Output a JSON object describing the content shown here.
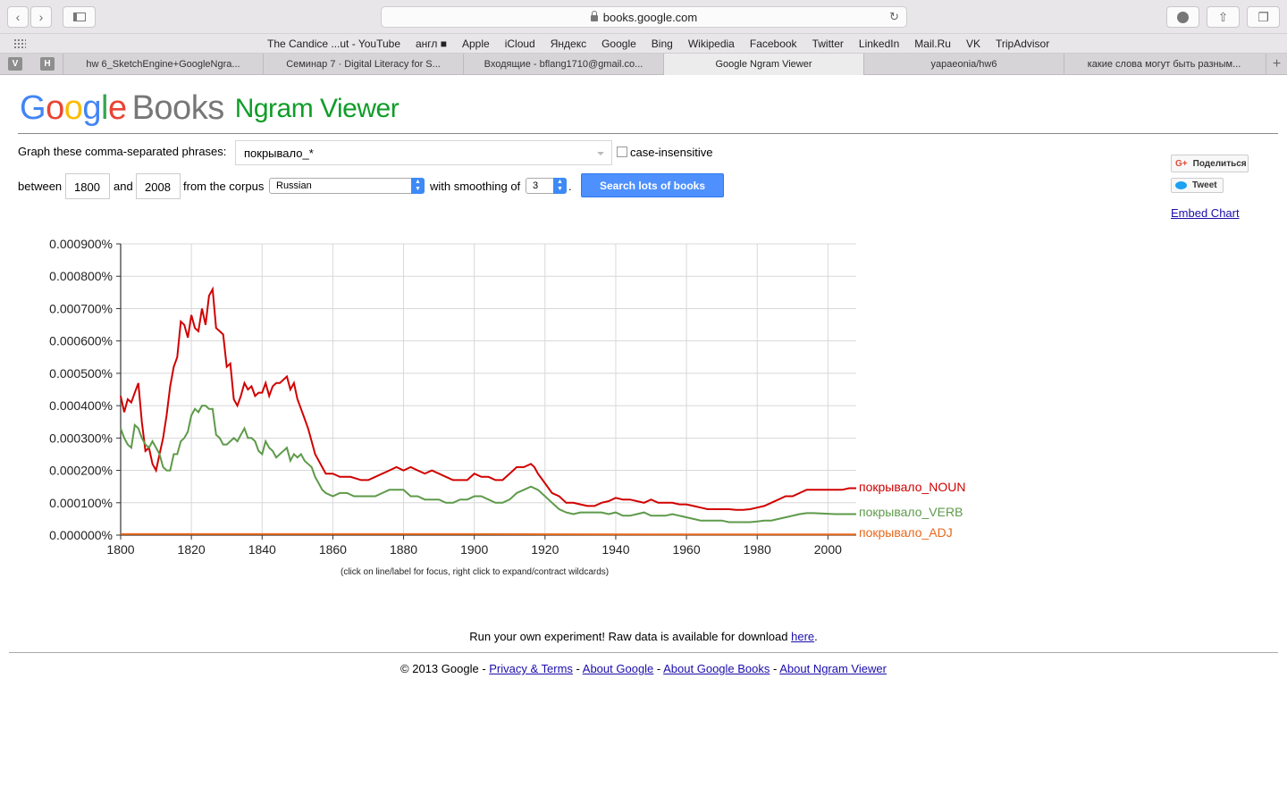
{
  "browser": {
    "url": "books.google.com",
    "bookmarks": [
      "The Candice ...ut - YouTube",
      "англ ■",
      "Apple",
      "iCloud",
      "Яндекс",
      "Google",
      "Bing",
      "Wikipedia",
      "Facebook",
      "Twitter",
      "LinkedIn",
      "Mail.Ru",
      "VK",
      "TripAdvisor"
    ],
    "pinned": [
      "V",
      "H"
    ],
    "tabs": [
      "hw 6_SketchEngine+GoogleNgra...",
      "Семинар 7 · Digital Literacy for S...",
      "Входящие - bflang1710@gmail.co...",
      "Google Ngram Viewer",
      "yapaeonia/hw6",
      "какие слова могут быть разным..."
    ],
    "active_tab": 3
  },
  "logo": {
    "google_letters": [
      "G",
      "o",
      "o",
      "g",
      "l",
      "e"
    ],
    "books": "Books",
    "ngram": "Ngram Viewer"
  },
  "form": {
    "phrases_label": "Graph these comma-separated phrases:",
    "query": "покрывало_*",
    "case_label": "case-insensitive",
    "between_label": "between",
    "start_year": "1800",
    "and_label": "and",
    "end_year": "2008",
    "corpus_label": "from the corpus",
    "corpus": "Russian",
    "smoothing_label": "with smoothing of",
    "smoothing": "3",
    "period": ".",
    "search_button": "Search lots of books"
  },
  "social": {
    "share": "Поделиться",
    "share_icon": "G+",
    "tweet": "Tweet",
    "embed": "Embed Chart"
  },
  "chart_data": {
    "type": "line",
    "x_range": [
      1800,
      2008
    ],
    "ylim": [
      0,
      0.0009
    ],
    "y_ticks": [
      "0.000000%",
      "0.000100%",
      "0.000200%",
      "0.000300%",
      "0.000400%",
      "0.000500%",
      "0.000600%",
      "0.000700%",
      "0.000800%",
      "0.000900%"
    ],
    "x_ticks": [
      "1800",
      "1820",
      "1840",
      "1860",
      "1880",
      "1900",
      "1920",
      "1940",
      "1960",
      "1980",
      "2000"
    ],
    "grid": true,
    "legend_placement": "right end of lines",
    "series": [
      {
        "name": "покрывало_NOUN",
        "color": "#d10000",
        "points": [
          [
            1800,
            0.00043
          ],
          [
            1801,
            0.00038
          ],
          [
            1802,
            0.00042
          ],
          [
            1803,
            0.00041
          ],
          [
            1804,
            0.00044
          ],
          [
            1805,
            0.00047
          ],
          [
            1806,
            0.00035
          ],
          [
            1807,
            0.00026
          ],
          [
            1808,
            0.00027
          ],
          [
            1809,
            0.00022
          ],
          [
            1810,
            0.0002
          ],
          [
            1811,
            0.00025
          ],
          [
            1812,
            0.0003
          ],
          [
            1813,
            0.00037
          ],
          [
            1814,
            0.00046
          ],
          [
            1815,
            0.00052
          ],
          [
            1816,
            0.00055
          ],
          [
            1817,
            0.00066
          ],
          [
            1818,
            0.00065
          ],
          [
            1819,
            0.00061
          ],
          [
            1820,
            0.00068
          ],
          [
            1821,
            0.00064
          ],
          [
            1822,
            0.00063
          ],
          [
            1823,
            0.0007
          ],
          [
            1824,
            0.00065
          ],
          [
            1825,
            0.00074
          ],
          [
            1826,
            0.00076
          ],
          [
            1827,
            0.00064
          ],
          [
            1828,
            0.00063
          ],
          [
            1829,
            0.00062
          ],
          [
            1830,
            0.00052
          ],
          [
            1831,
            0.00053
          ],
          [
            1832,
            0.00042
          ],
          [
            1833,
            0.0004
          ],
          [
            1834,
            0.00043
          ],
          [
            1835,
            0.00047
          ],
          [
            1836,
            0.00045
          ],
          [
            1837,
            0.00046
          ],
          [
            1838,
            0.00043
          ],
          [
            1839,
            0.00044
          ],
          [
            1840,
            0.00044
          ],
          [
            1841,
            0.00047
          ],
          [
            1842,
            0.00043
          ],
          [
            1843,
            0.00046
          ],
          [
            1844,
            0.00047
          ],
          [
            1845,
            0.00047
          ],
          [
            1846,
            0.00048
          ],
          [
            1847,
            0.00049
          ],
          [
            1848,
            0.00045
          ],
          [
            1849,
            0.00047
          ],
          [
            1850,
            0.00042
          ],
          [
            1851,
            0.00039
          ],
          [
            1852,
            0.00036
          ],
          [
            1853,
            0.00033
          ],
          [
            1854,
            0.00029
          ],
          [
            1855,
            0.00025
          ],
          [
            1856,
            0.00023
          ],
          [
            1857,
            0.00021
          ],
          [
            1858,
            0.00019
          ],
          [
            1860,
            0.00019
          ],
          [
            1862,
            0.00018
          ],
          [
            1865,
            0.00018
          ],
          [
            1868,
            0.00017
          ],
          [
            1870,
            0.00017
          ],
          [
            1872,
            0.00018
          ],
          [
            1874,
            0.00019
          ],
          [
            1876,
            0.0002
          ],
          [
            1878,
            0.00021
          ],
          [
            1880,
            0.0002
          ],
          [
            1882,
            0.00021
          ],
          [
            1884,
            0.0002
          ],
          [
            1886,
            0.00019
          ],
          [
            1888,
            0.0002
          ],
          [
            1890,
            0.00019
          ],
          [
            1892,
            0.00018
          ],
          [
            1894,
            0.00017
          ],
          [
            1896,
            0.00017
          ],
          [
            1898,
            0.00017
          ],
          [
            1900,
            0.00019
          ],
          [
            1902,
            0.00018
          ],
          [
            1904,
            0.00018
          ],
          [
            1906,
            0.00017
          ],
          [
            1908,
            0.00017
          ],
          [
            1910,
            0.00019
          ],
          [
            1912,
            0.00021
          ],
          [
            1914,
            0.00021
          ],
          [
            1916,
            0.00022
          ],
          [
            1917,
            0.00021
          ],
          [
            1918,
            0.00019
          ],
          [
            1920,
            0.00016
          ],
          [
            1922,
            0.00013
          ],
          [
            1924,
            0.00012
          ],
          [
            1926,
            0.0001
          ],
          [
            1928,
            0.0001
          ],
          [
            1930,
            9.5e-05
          ],
          [
            1932,
            9e-05
          ],
          [
            1934,
            9e-05
          ],
          [
            1936,
            0.0001
          ],
          [
            1938,
            0.000105
          ],
          [
            1940,
            0.000115
          ],
          [
            1942,
            0.00011
          ],
          [
            1944,
            0.00011
          ],
          [
            1946,
            0.000105
          ],
          [
            1948,
            0.0001
          ],
          [
            1950,
            0.00011
          ],
          [
            1952,
            0.0001
          ],
          [
            1954,
            0.0001
          ],
          [
            1956,
            0.0001
          ],
          [
            1958,
            9.5e-05
          ],
          [
            1960,
            9.5e-05
          ],
          [
            1962,
            9e-05
          ],
          [
            1964,
            8.5e-05
          ],
          [
            1966,
            8e-05
          ],
          [
            1968,
            8e-05
          ],
          [
            1970,
            8e-05
          ],
          [
            1972,
            8e-05
          ],
          [
            1974,
            7.8e-05
          ],
          [
            1976,
            7.8e-05
          ],
          [
            1978,
            8e-05
          ],
          [
            1980,
            8.5e-05
          ],
          [
            1982,
            9e-05
          ],
          [
            1984,
            0.0001
          ],
          [
            1986,
            0.00011
          ],
          [
            1988,
            0.00012
          ],
          [
            1990,
            0.00012
          ],
          [
            1992,
            0.00013
          ],
          [
            1994,
            0.00014
          ],
          [
            1996,
            0.00014
          ],
          [
            1998,
            0.00014
          ],
          [
            2000,
            0.00014
          ],
          [
            2002,
            0.00014
          ],
          [
            2004,
            0.00014
          ],
          [
            2006,
            0.000145
          ],
          [
            2008,
            0.000145
          ]
        ]
      },
      {
        "name": "покрывало_VERB",
        "color": "#5e9a4a",
        "points": [
          [
            1800,
            0.00033
          ],
          [
            1801,
            0.0003
          ],
          [
            1802,
            0.00028
          ],
          [
            1803,
            0.00027
          ],
          [
            1804,
            0.00034
          ],
          [
            1805,
            0.00033
          ],
          [
            1806,
            0.0003
          ],
          [
            1807,
            0.00028
          ],
          [
            1808,
            0.00027
          ],
          [
            1809,
            0.00029
          ],
          [
            1810,
            0.00027
          ],
          [
            1811,
            0.00025
          ],
          [
            1812,
            0.00021
          ],
          [
            1813,
            0.0002
          ],
          [
            1814,
            0.0002
          ],
          [
            1815,
            0.00025
          ],
          [
            1816,
            0.00025
          ],
          [
            1817,
            0.00029
          ],
          [
            1818,
            0.0003
          ],
          [
            1819,
            0.00032
          ],
          [
            1820,
            0.00037
          ],
          [
            1821,
            0.00039
          ],
          [
            1822,
            0.00038
          ],
          [
            1823,
            0.0004
          ],
          [
            1824,
            0.0004
          ],
          [
            1825,
            0.00039
          ],
          [
            1826,
            0.00039
          ],
          [
            1827,
            0.00031
          ],
          [
            1828,
            0.0003
          ],
          [
            1829,
            0.00028
          ],
          [
            1830,
            0.00028
          ],
          [
            1831,
            0.00029
          ],
          [
            1832,
            0.0003
          ],
          [
            1833,
            0.00029
          ],
          [
            1834,
            0.00031
          ],
          [
            1835,
            0.00033
          ],
          [
            1836,
            0.0003
          ],
          [
            1837,
            0.0003
          ],
          [
            1838,
            0.00029
          ],
          [
            1839,
            0.00026
          ],
          [
            1840,
            0.00025
          ],
          [
            1841,
            0.00029
          ],
          [
            1842,
            0.00027
          ],
          [
            1843,
            0.00026
          ],
          [
            1844,
            0.00024
          ],
          [
            1845,
            0.00025
          ],
          [
            1846,
            0.00026
          ],
          [
            1847,
            0.00027
          ],
          [
            1848,
            0.00023
          ],
          [
            1849,
            0.00025
          ],
          [
            1850,
            0.00024
          ],
          [
            1851,
            0.00025
          ],
          [
            1852,
            0.00023
          ],
          [
            1853,
            0.00022
          ],
          [
            1854,
            0.00021
          ],
          [
            1855,
            0.00018
          ],
          [
            1856,
            0.00016
          ],
          [
            1857,
            0.00014
          ],
          [
            1858,
            0.00013
          ],
          [
            1860,
            0.00012
          ],
          [
            1862,
            0.00013
          ],
          [
            1864,
            0.00013
          ],
          [
            1866,
            0.00012
          ],
          [
            1868,
            0.00012
          ],
          [
            1870,
            0.00012
          ],
          [
            1872,
            0.00012
          ],
          [
            1874,
            0.00013
          ],
          [
            1876,
            0.00014
          ],
          [
            1878,
            0.00014
          ],
          [
            1880,
            0.00014
          ],
          [
            1882,
            0.00012
          ],
          [
            1884,
            0.00012
          ],
          [
            1886,
            0.00011
          ],
          [
            1888,
            0.00011
          ],
          [
            1890,
            0.00011
          ],
          [
            1892,
            0.0001
          ],
          [
            1894,
            0.0001
          ],
          [
            1896,
            0.00011
          ],
          [
            1898,
            0.00011
          ],
          [
            1900,
            0.00012
          ],
          [
            1902,
            0.00012
          ],
          [
            1904,
            0.00011
          ],
          [
            1906,
            0.0001
          ],
          [
            1908,
            0.0001
          ],
          [
            1910,
            0.00011
          ],
          [
            1912,
            0.00013
          ],
          [
            1914,
            0.00014
          ],
          [
            1916,
            0.00015
          ],
          [
            1918,
            0.00014
          ],
          [
            1920,
            0.00012
          ],
          [
            1922,
            0.0001
          ],
          [
            1924,
            8e-05
          ],
          [
            1926,
            7e-05
          ],
          [
            1928,
            6.5e-05
          ],
          [
            1930,
            7e-05
          ],
          [
            1932,
            7e-05
          ],
          [
            1934,
            7e-05
          ],
          [
            1936,
            7e-05
          ],
          [
            1938,
            6.5e-05
          ],
          [
            1940,
            7e-05
          ],
          [
            1942,
            6e-05
          ],
          [
            1944,
            6e-05
          ],
          [
            1946,
            6.5e-05
          ],
          [
            1948,
            7e-05
          ],
          [
            1950,
            6e-05
          ],
          [
            1952,
            6e-05
          ],
          [
            1954,
            6e-05
          ],
          [
            1956,
            6.5e-05
          ],
          [
            1958,
            6e-05
          ],
          [
            1960,
            5.5e-05
          ],
          [
            1962,
            5e-05
          ],
          [
            1964,
            4.5e-05
          ],
          [
            1966,
            4.5e-05
          ],
          [
            1968,
            4.5e-05
          ],
          [
            1970,
            4.5e-05
          ],
          [
            1972,
            4e-05
          ],
          [
            1974,
            4e-05
          ],
          [
            1976,
            4e-05
          ],
          [
            1978,
            4e-05
          ],
          [
            1980,
            4.2e-05
          ],
          [
            1982,
            4.5e-05
          ],
          [
            1984,
            4.5e-05
          ],
          [
            1986,
            5e-05
          ],
          [
            1988,
            5.5e-05
          ],
          [
            1990,
            6e-05
          ],
          [
            1992,
            6.5e-05
          ],
          [
            1994,
            6.8e-05
          ],
          [
            1996,
            6.8e-05
          ],
          [
            1998,
            6.7e-05
          ],
          [
            2000,
            6.6e-05
          ],
          [
            2002,
            6.5e-05
          ],
          [
            2004,
            6.5e-05
          ],
          [
            2006,
            6.5e-05
          ],
          [
            2008,
            6.5e-05
          ]
        ]
      },
      {
        "name": "покрывало_ADJ",
        "color": "#e8671a",
        "points": [
          [
            1800,
            3e-06
          ],
          [
            1850,
            3e-06
          ],
          [
            1900,
            3e-06
          ],
          [
            1950,
            2e-06
          ],
          [
            2008,
            2e-06
          ]
        ]
      }
    ],
    "hint": "(click on line/label for focus, right click to expand/contract wildcards)"
  },
  "run": {
    "text": "Run your own experiment! Raw data is available for download ",
    "link": "here",
    "end": "."
  },
  "footer": {
    "copyright": "© 2013 Google",
    "sep": " - ",
    "links": [
      "Privacy & Terms",
      "About Google",
      "About Google Books",
      "About Ngram Viewer"
    ]
  }
}
